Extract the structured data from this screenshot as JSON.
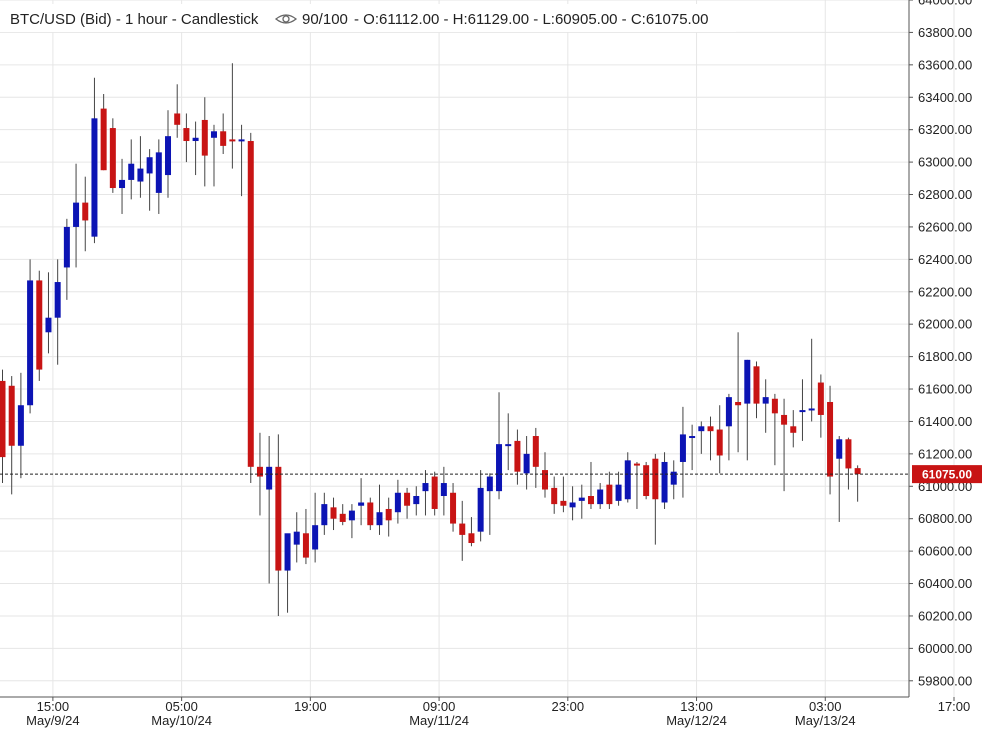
{
  "header": {
    "title": "BTC/USD (Bid) - 1 hour - Candlestick",
    "visibility": "90/100",
    "ohlc": "- O:61112.00 - H:61129.00 - L:60905.00 - C:61075.00"
  },
  "last_price_label": "61075.00",
  "colors": {
    "up": "#0c14b4",
    "down": "#c81414",
    "grid": "#e6e6e6",
    "axis": "#555555",
    "last_label_bg": "#c81414"
  },
  "chart_data": {
    "type": "candlestick",
    "title": "BTC/USD (Bid) - 1 hour - Candlestick",
    "ylim": [
      59700,
      64000
    ],
    "y_ticks": [
      "64000.00",
      "63800.00",
      "63600.00",
      "63400.00",
      "63200.00",
      "63000.00",
      "62800.00",
      "62600.00",
      "62400.00",
      "62200.00",
      "62000.00",
      "61800.00",
      "61600.00",
      "61400.00",
      "61200.00",
      "61000.00",
      "60800.00",
      "60600.00",
      "60400.00",
      "60200.00",
      "60000.00",
      "59800.00"
    ],
    "x_ticks": [
      {
        "label": "15:00",
        "date": "May/9/24",
        "index": 2
      },
      {
        "label": "05:00",
        "date": "May/10/24",
        "index": 16
      },
      {
        "label": "19:00",
        "date": "",
        "index": 30
      },
      {
        "label": "09:00",
        "date": "May/11/24",
        "index": 44
      },
      {
        "label": "23:00",
        "date": "",
        "index": 58
      },
      {
        "label": "13:00",
        "date": "May/12/24",
        "index": 72
      },
      {
        "label": "03:00",
        "date": "May/13/24",
        "index": 86
      },
      {
        "label": "17:00",
        "date": "",
        "index": 100
      }
    ],
    "last_price": 61075,
    "candles": [
      {
        "o": 61650,
        "h": 61720,
        "l": 61020,
        "c": 61180
      },
      {
        "o": 61620,
        "h": 61680,
        "l": 60950,
        "c": 61250
      },
      {
        "o": 61250,
        "h": 61700,
        "l": 61050,
        "c": 61500
      },
      {
        "o": 61500,
        "h": 62400,
        "l": 61450,
        "c": 62270
      },
      {
        "o": 62270,
        "h": 62330,
        "l": 61650,
        "c": 61720
      },
      {
        "o": 61950,
        "h": 62320,
        "l": 61820,
        "c": 62040
      },
      {
        "o": 62040,
        "h": 62400,
        "l": 61750,
        "c": 62260
      },
      {
        "o": 62350,
        "h": 62650,
        "l": 62150,
        "c": 62600
      },
      {
        "o": 62600,
        "h": 62990,
        "l": 62350,
        "c": 62750
      },
      {
        "o": 62750,
        "h": 62910,
        "l": 62450,
        "c": 62640
      },
      {
        "o": 62540,
        "h": 63520,
        "l": 62500,
        "c": 63270
      },
      {
        "o": 63330,
        "h": 63420,
        "l": 62950,
        "c": 62950
      },
      {
        "o": 63210,
        "h": 63270,
        "l": 62810,
        "c": 62840
      },
      {
        "o": 62840,
        "h": 63020,
        "l": 62680,
        "c": 62890
      },
      {
        "o": 62890,
        "h": 63140,
        "l": 62770,
        "c": 62990
      },
      {
        "o": 62880,
        "h": 63160,
        "l": 62780,
        "c": 62960
      },
      {
        "o": 62930,
        "h": 63080,
        "l": 62700,
        "c": 63030
      },
      {
        "o": 62810,
        "h": 63140,
        "l": 62680,
        "c": 63060
      },
      {
        "o": 62920,
        "h": 63320,
        "l": 62780,
        "c": 63160
      },
      {
        "o": 63300,
        "h": 63480,
        "l": 63150,
        "c": 63230
      },
      {
        "o": 63210,
        "h": 63300,
        "l": 63000,
        "c": 63130
      },
      {
        "o": 63130,
        "h": 63250,
        "l": 62920,
        "c": 63150
      },
      {
        "o": 63260,
        "h": 63400,
        "l": 62850,
        "c": 63040
      },
      {
        "o": 63150,
        "h": 63230,
        "l": 62850,
        "c": 63190
      },
      {
        "o": 63190,
        "h": 63300,
        "l": 63050,
        "c": 63100
      },
      {
        "o": 63140,
        "h": 63610,
        "l": 62960,
        "c": 63130
      },
      {
        "o": 63140,
        "h": 63230,
        "l": 62790,
        "c": 63140
      },
      {
        "o": 63130,
        "h": 63180,
        "l": 61020,
        "c": 61120
      },
      {
        "o": 61120,
        "h": 61330,
        "l": 60820,
        "c": 61060
      },
      {
        "o": 60980,
        "h": 61310,
        "l": 60400,
        "c": 61120
      },
      {
        "o": 61120,
        "h": 61320,
        "l": 60200,
        "c": 60480
      },
      {
        "o": 60480,
        "h": 60700,
        "l": 60220,
        "c": 60710
      },
      {
        "o": 60640,
        "h": 60840,
        "l": 60530,
        "c": 60720
      },
      {
        "o": 60710,
        "h": 60860,
        "l": 60520,
        "c": 60560
      },
      {
        "o": 60610,
        "h": 60960,
        "l": 60530,
        "c": 60760
      },
      {
        "o": 60760,
        "h": 60960,
        "l": 60700,
        "c": 60890
      },
      {
        "o": 60870,
        "h": 60930,
        "l": 60730,
        "c": 60800
      },
      {
        "o": 60830,
        "h": 60890,
        "l": 60760,
        "c": 60780
      },
      {
        "o": 60790,
        "h": 60890,
        "l": 60680,
        "c": 60850
      },
      {
        "o": 60880,
        "h": 61050,
        "l": 60760,
        "c": 60900
      },
      {
        "o": 60900,
        "h": 60930,
        "l": 60730,
        "c": 60760
      },
      {
        "o": 60760,
        "h": 61010,
        "l": 60700,
        "c": 60840
      },
      {
        "o": 60860,
        "h": 60930,
        "l": 60690,
        "c": 60790
      },
      {
        "o": 60840,
        "h": 61040,
        "l": 60770,
        "c": 60960
      },
      {
        "o": 60960,
        "h": 60990,
        "l": 60800,
        "c": 60880
      },
      {
        "o": 60890,
        "h": 61000,
        "l": 60820,
        "c": 60940
      },
      {
        "o": 60970,
        "h": 61100,
        "l": 60820,
        "c": 61020
      },
      {
        "o": 61060,
        "h": 61090,
        "l": 60820,
        "c": 60860
      },
      {
        "o": 60940,
        "h": 61120,
        "l": 60820,
        "c": 61020
      },
      {
        "o": 60960,
        "h": 61020,
        "l": 60720,
        "c": 60770
      },
      {
        "o": 60770,
        "h": 60910,
        "l": 60540,
        "c": 60700
      },
      {
        "o": 60710,
        "h": 60810,
        "l": 60630,
        "c": 60650
      },
      {
        "o": 60720,
        "h": 61100,
        "l": 60660,
        "c": 60990
      },
      {
        "o": 60970,
        "h": 61080,
        "l": 60700,
        "c": 61060
      },
      {
        "o": 60970,
        "h": 61580,
        "l": 60920,
        "c": 61260
      },
      {
        "o": 61260,
        "h": 61450,
        "l": 61100,
        "c": 61260
      },
      {
        "o": 61280,
        "h": 61350,
        "l": 61010,
        "c": 61090
      },
      {
        "o": 61080,
        "h": 61310,
        "l": 60980,
        "c": 61200
      },
      {
        "o": 61310,
        "h": 61360,
        "l": 60990,
        "c": 61120
      },
      {
        "o": 61100,
        "h": 61210,
        "l": 60930,
        "c": 60980
      },
      {
        "o": 60990,
        "h": 61060,
        "l": 60830,
        "c": 60890
      },
      {
        "o": 60910,
        "h": 61060,
        "l": 60840,
        "c": 60880
      },
      {
        "o": 60870,
        "h": 61000,
        "l": 60790,
        "c": 60900
      },
      {
        "o": 60910,
        "h": 61010,
        "l": 60800,
        "c": 60930
      },
      {
        "o": 60940,
        "h": 61150,
        "l": 60860,
        "c": 60890
      },
      {
        "o": 60890,
        "h": 61020,
        "l": 60860,
        "c": 60980
      },
      {
        "o": 61010,
        "h": 61090,
        "l": 60860,
        "c": 60890
      },
      {
        "o": 60910,
        "h": 61090,
        "l": 60880,
        "c": 61010
      },
      {
        "o": 60920,
        "h": 61210,
        "l": 60900,
        "c": 61160
      },
      {
        "o": 61140,
        "h": 61150,
        "l": 60860,
        "c": 61130
      },
      {
        "o": 61130,
        "h": 61150,
        "l": 60920,
        "c": 60940
      },
      {
        "o": 61170,
        "h": 61200,
        "l": 60640,
        "c": 60920
      },
      {
        "o": 60900,
        "h": 61210,
        "l": 60860,
        "c": 61150
      },
      {
        "o": 61010,
        "h": 61160,
        "l": 60920,
        "c": 61090
      },
      {
        "o": 61150,
        "h": 61490,
        "l": 60930,
        "c": 61320
      },
      {
        "o": 61300,
        "h": 61380,
        "l": 61100,
        "c": 61310
      },
      {
        "o": 61340,
        "h": 61400,
        "l": 61200,
        "c": 61370
      },
      {
        "o": 61370,
        "h": 61430,
        "l": 61160,
        "c": 61340
      },
      {
        "o": 61350,
        "h": 61500,
        "l": 61080,
        "c": 61190
      },
      {
        "o": 61370,
        "h": 61570,
        "l": 61160,
        "c": 61550
      },
      {
        "o": 61520,
        "h": 61950,
        "l": 61210,
        "c": 61500
      },
      {
        "o": 61510,
        "h": 61780,
        "l": 61160,
        "c": 61780
      },
      {
        "o": 61740,
        "h": 61770,
        "l": 61420,
        "c": 61510
      },
      {
        "o": 61510,
        "h": 61660,
        "l": 61330,
        "c": 61550
      },
      {
        "o": 61540,
        "h": 61570,
        "l": 61130,
        "c": 61450
      },
      {
        "o": 61440,
        "h": 61540,
        "l": 60970,
        "c": 61380
      },
      {
        "o": 61370,
        "h": 61470,
        "l": 61240,
        "c": 61330
      },
      {
        "o": 61460,
        "h": 61660,
        "l": 61280,
        "c": 61470
      },
      {
        "o": 61470,
        "h": 61910,
        "l": 61400,
        "c": 61480
      },
      {
        "o": 61640,
        "h": 61690,
        "l": 61300,
        "c": 61440
      },
      {
        "o": 61520,
        "h": 61620,
        "l": 60950,
        "c": 61060
      },
      {
        "o": 61170,
        "h": 61310,
        "l": 60780,
        "c": 61290
      },
      {
        "o": 61290,
        "h": 61300,
        "l": 60980,
        "c": 61110
      },
      {
        "o": 61112,
        "h": 61129,
        "l": 60905,
        "c": 61075
      }
    ]
  }
}
